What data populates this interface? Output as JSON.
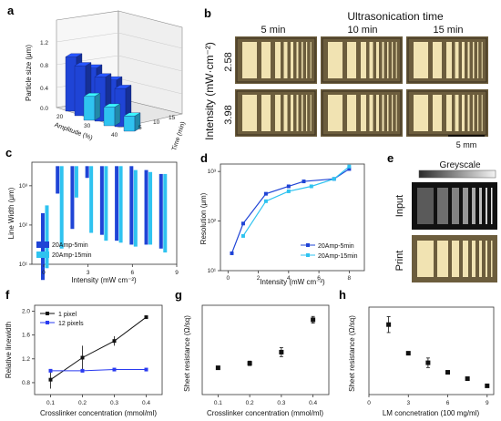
{
  "panel_letters": [
    "a",
    "b",
    "c",
    "d",
    "e",
    "f",
    "g",
    "h"
  ],
  "colors": {
    "dark_blue": "#1f44d6",
    "light_blue": "#2fc3f0",
    "bar_top": "#0e24a8",
    "black": "#111111",
    "royal": "#2a3bf0"
  },
  "panel_b": {
    "title": "Ultrasonication time",
    "col_labels": [
      "5 min",
      "10 min",
      "15 min"
    ],
    "row_labels": [
      "2.58",
      "3.98"
    ],
    "ylabel": "Intensity (mW·cm⁻²)",
    "scalebar": "5 mm"
  },
  "panel_e": {
    "greyscale_label": "Greyscale",
    "row_labels": [
      "Input",
      "Print"
    ]
  },
  "chart_data": [
    {
      "panel": "a",
      "type": "bar3d",
      "ylabel": "Particle size (μm)",
      "xlabel": "Amplitude (%)",
      "zlabel": "Time (min)",
      "yticks": [
        "0.0",
        "0.4",
        "0.8",
        "1.2"
      ],
      "xticks": [
        "20",
        "30",
        "40"
      ],
      "zticks": [
        "5",
        "10",
        "15"
      ],
      "zlim": [
        0,
        1.3
      ],
      "series": [
        {
          "values": [
            1.25,
            1.12,
            0.97
          ],
          "color": "dark_blue"
        },
        {
          "values": [
            1.15,
            1.02,
            0.88
          ],
          "color": "dark_blue"
        },
        {
          "values": [
            0.55,
            0.43,
            0.35
          ],
          "color": "light_blue"
        }
      ]
    },
    {
      "panel": "c",
      "type": "bar-range",
      "xlabel": "Intensity (mW cm⁻²)",
      "ylabel": "Line Width (μm)",
      "xticks": [
        "0",
        "3",
        "6",
        "9"
      ],
      "xlim": [
        -0.8,
        9
      ],
      "yticks": [
        "10¹",
        "10²",
        "10³"
      ],
      "ylim": [
        1,
        3.6
      ],
      "legend": [
        "20Amp-5min",
        "20Amp-15min"
      ],
      "x": [
        0,
        1,
        2,
        3,
        4,
        5,
        6,
        7,
        8
      ],
      "series": [
        {
          "name": "20Amp-5min",
          "color": "dark_blue",
          "bars": [
            [
              0.6,
              2.3
            ],
            [
              2.8,
              3.5
            ],
            [
              1.9,
              3.5
            ],
            [
              3.2,
              3.5
            ],
            [
              1.75,
              3.5
            ],
            [
              1.6,
              3.5
            ],
            [
              1.5,
              3.5
            ],
            [
              1.5,
              3.4
            ],
            [
              1.4,
              3.3
            ]
          ]
        },
        {
          "name": "20Amp-15min",
          "color": "light_blue",
          "bars": [
            [
              0.9,
              2.5
            ],
            [
              1.4,
              3.5
            ],
            [
              2.7,
              3.5
            ],
            [
              1.8,
              3.5
            ],
            [
              1.6,
              3.5
            ],
            [
              1.55,
              3.5
            ],
            [
              1.45,
              3.4
            ],
            [
              1.5,
              3.35
            ],
            [
              1.3,
              3.3
            ]
          ]
        }
      ]
    },
    {
      "panel": "d",
      "type": "line",
      "xlabel": "Intensity (mW cm⁻²)",
      "ylabel": "Resolution (μm)",
      "xticks": [
        "0",
        "2",
        "4",
        "6",
        "8"
      ],
      "xlim": [
        -0.5,
        9
      ],
      "yticks": [
        "10¹",
        "10²",
        "10³"
      ],
      "ylim": [
        1,
        3.15
      ],
      "legend": [
        "20Amp-5min",
        "20Amp-15min"
      ],
      "series": [
        {
          "name": "20Amp-5min",
          "color": "dark_blue",
          "x": [
            0.25,
            1,
            2.5,
            4,
            5,
            7,
            8
          ],
          "y": [
            1.35,
            1.95,
            2.55,
            2.7,
            2.8,
            2.85,
            3.05
          ]
        },
        {
          "name": "20Amp-15min",
          "color": "light_blue",
          "x": [
            1,
            2.5,
            4,
            5.5,
            7,
            8
          ],
          "y": [
            1.7,
            2.4,
            2.6,
            2.7,
            2.85,
            3.1
          ]
        }
      ]
    },
    {
      "panel": "f",
      "type": "line",
      "xlabel": "Crosslinker concentration (mmol/ml)",
      "ylabel": "Relative linewidth",
      "xticks": [
        "0.1",
        "0.2",
        "0.3",
        "0.4"
      ],
      "xlim": [
        0.05,
        0.45
      ],
      "yticks": [
        "0.8",
        "1.2",
        "1.6",
        "2.0"
      ],
      "ylim": [
        0.6,
        2.1
      ],
      "legend": [
        "1 pixel",
        "12 pixels"
      ],
      "series": [
        {
          "name": "1 pixel",
          "color": "black",
          "x": [
            0.1,
            0.2,
            0.3,
            0.4
          ],
          "y": [
            0.85,
            1.22,
            1.5,
            1.9
          ],
          "err": [
            0.15,
            0.2,
            0.08,
            0.03
          ]
        },
        {
          "name": "12 pixels",
          "color": "royal",
          "x": [
            0.1,
            0.2,
            0.3,
            0.4
          ],
          "y": [
            1.0,
            1.0,
            1.02,
            1.02
          ],
          "err": [
            0.02,
            0.02,
            0.02,
            0.02
          ]
        }
      ]
    },
    {
      "panel": "g",
      "type": "scatter",
      "xlabel": "Crosslinker concentration (mmol/ml)",
      "ylabel": "Sheet resistance (Ω/sq)",
      "xticks": [
        "0.1",
        "0.2",
        "0.3",
        "0.4"
      ],
      "xlim": [
        0.05,
        0.45
      ],
      "ylim": [
        0,
        0.4
      ],
      "x": [
        0.1,
        0.2,
        0.3,
        0.4
      ],
      "y": [
        0.12,
        0.14,
        0.19,
        0.335
      ],
      "err": [
        0.005,
        0.01,
        0.02,
        0.015
      ]
    },
    {
      "panel": "h",
      "type": "scatter",
      "xlabel": "LM concnetration (100 mg/ml)",
      "ylabel": "Sheet resistance (Ω/sq)",
      "xticks": [
        "0",
        "3",
        "6",
        "9"
      ],
      "xlim": [
        0,
        9.5
      ],
      "ylim": [
        0,
        0.55
      ],
      "x": [
        1.5,
        3,
        4.5,
        6,
        7.5,
        9
      ],
      "y": [
        0.44,
        0.26,
        0.2,
        0.14,
        0.1,
        0.055
      ],
      "err": [
        0.05,
        0.01,
        0.03,
        0.01,
        0.005,
        0.005
      ]
    }
  ]
}
